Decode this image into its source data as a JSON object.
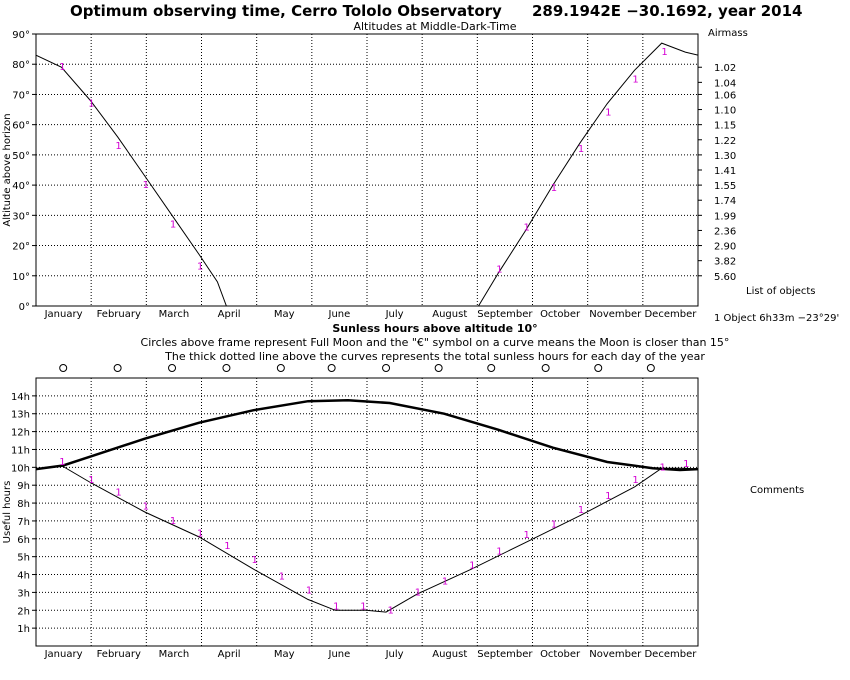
{
  "header": {
    "title": "Optimum observing time, Cerro Tololo Observatory",
    "coords": "289.1942E −30.1692, year 2014"
  },
  "side": {
    "airmass_title": "Airmass",
    "list_title": "List of objects",
    "object_line": "1 Object  6h33m −23°29'",
    "comments": "Comments"
  },
  "bottom_text": {
    "title": "Sunless hours above altitude 10°",
    "line1": "Circles above frame represent Full Moon and the \"€\" symbol on a curve means the Moon is closer than 15°",
    "line2": "The thick dotted line above the curves represents the total sunless hours for each day of the year"
  },
  "chart_data": [
    {
      "type": "line",
      "title": "Altitudes at Middle-Dark-Time",
      "ylabel": "Altitude above horizon",
      "ylim": [
        0,
        90
      ],
      "yticks": [
        "0°",
        "10°",
        "20°",
        "30°",
        "40°",
        "50°",
        "60°",
        "70°",
        "80°",
        "90°"
      ],
      "right_axis_title": "Airmass",
      "airmass_ticks": [
        {
          "label": "1.02",
          "alt": 79
        },
        {
          "label": "1.04",
          "alt": 74
        },
        {
          "label": "1.06",
          "alt": 70
        },
        {
          "label": "1.10",
          "alt": 65
        },
        {
          "label": "1.15",
          "alt": 60
        },
        {
          "label": "1.22",
          "alt": 55
        },
        {
          "label": "1.30",
          "alt": 50
        },
        {
          "label": "1.41",
          "alt": 45
        },
        {
          "label": "1.55",
          "alt": 40
        },
        {
          "label": "1.74",
          "alt": 35
        },
        {
          "label": "1.99",
          "alt": 30
        },
        {
          "label": "2.36",
          "alt": 25
        },
        {
          "label": "2.90",
          "alt": 20
        },
        {
          "label": "3.82",
          "alt": 15
        },
        {
          "label": "5.60",
          "alt": 10
        }
      ],
      "months": [
        "January",
        "February",
        "March",
        "April",
        "May",
        "June",
        "July",
        "August",
        "September",
        "October",
        "November",
        "December"
      ],
      "xlim": [
        0,
        365
      ],
      "series": [
        {
          "name": "1",
          "segments": [
            [
              [
                0,
                83
              ],
              [
                14,
                79
              ],
              [
                30,
                68
              ],
              [
                45,
                56
              ],
              [
                60,
                43
              ],
              [
                75,
                30
              ],
              [
                90,
                17
              ],
              [
                100,
                8
              ],
              [
                105,
                0
              ]
            ],
            [
              [
                244,
                0
              ],
              [
                255,
                11
              ],
              [
                270,
                25
              ],
              [
                285,
                40
              ],
              [
                300,
                54
              ],
              [
                315,
                67
              ],
              [
                330,
                78
              ],
              [
                345,
                87
              ],
              [
                358,
                84
              ],
              [
                365,
                83
              ]
            ]
          ]
        }
      ],
      "label_points": [
        [
          14,
          79
        ],
        [
          30,
          67
        ],
        [
          45,
          53
        ],
        [
          60,
          40
        ],
        [
          75,
          27
        ],
        [
          90,
          13
        ],
        [
          255,
          12
        ],
        [
          270,
          26
        ],
        [
          285,
          39
        ],
        [
          300,
          52
        ],
        [
          315,
          64
        ],
        [
          330,
          75
        ],
        [
          346,
          84
        ]
      ]
    },
    {
      "type": "line",
      "ylabel": "Useful hours",
      "ylim": [
        0,
        15
      ],
      "yticks": [
        "1h",
        "2h",
        "3h",
        "4h",
        "5h",
        "6h",
        "7h",
        "8h",
        "9h",
        "10h",
        "11h",
        "12h",
        "13h",
        "14h"
      ],
      "months": [
        "January",
        "February",
        "March",
        "April",
        "May",
        "June",
        "July",
        "August",
        "September",
        "October",
        "November",
        "December"
      ],
      "xlim": [
        0,
        365
      ],
      "full_moon_days": [
        15,
        45,
        75,
        105,
        135,
        163,
        193,
        222,
        251,
        281,
        310,
        339
      ],
      "series": [
        {
          "name": "total sunless hours",
          "style": "thick",
          "points": [
            [
              0,
              9.9
            ],
            [
              15,
              10.1
            ],
            [
              30,
              10.6
            ],
            [
              60,
              11.6
            ],
            [
              90,
              12.5
            ],
            [
              120,
              13.2
            ],
            [
              150,
              13.7
            ],
            [
              172,
              13.75
            ],
            [
              195,
              13.6
            ],
            [
              225,
              13.0
            ],
            [
              255,
              12.1
            ],
            [
              285,
              11.1
            ],
            [
              315,
              10.3
            ],
            [
              340,
              9.95
            ],
            [
              355,
              9.85
            ],
            [
              365,
              9.9
            ]
          ]
        },
        {
          "name": "1",
          "points": [
            [
              0,
              9.9
            ],
            [
              14,
              10.1
            ],
            [
              30,
              9.15
            ],
            [
              60,
              7.5
            ],
            [
              90,
              6.1
            ],
            [
              120,
              4.3
            ],
            [
              150,
              2.6
            ],
            [
              165,
              2.0
            ],
            [
              182,
              2.0
            ],
            [
              193,
              1.9
            ],
            [
              210,
              2.9
            ],
            [
              240,
              4.3
            ],
            [
              270,
              5.8
            ],
            [
              300,
              7.3
            ],
            [
              330,
              8.9
            ],
            [
              345,
              9.95
            ],
            [
              358,
              9.95
            ],
            [
              365,
              9.9
            ]
          ]
        }
      ],
      "label_points": [
        [
          14,
          10.3
        ],
        [
          30,
          9.3
        ],
        [
          45,
          8.6
        ],
        [
          60,
          7.8
        ],
        [
          75,
          7.0
        ],
        [
          90,
          6.3
        ],
        [
          105,
          5.6
        ],
        [
          120,
          4.8
        ],
        [
          135,
          3.9
        ],
        [
          150,
          3.1
        ],
        [
          165,
          2.2
        ],
        [
          180,
          2.2
        ],
        [
          195,
          2.0
        ],
        [
          210,
          3.0
        ],
        [
          225,
          3.6
        ],
        [
          240,
          4.5
        ],
        [
          255,
          5.3
        ],
        [
          270,
          6.2
        ],
        [
          285,
          6.8
        ],
        [
          300,
          7.6
        ],
        [
          315,
          8.4
        ],
        [
          330,
          9.3
        ],
        [
          345,
          10.0
        ],
        [
          358,
          10.2
        ]
      ]
    }
  ]
}
